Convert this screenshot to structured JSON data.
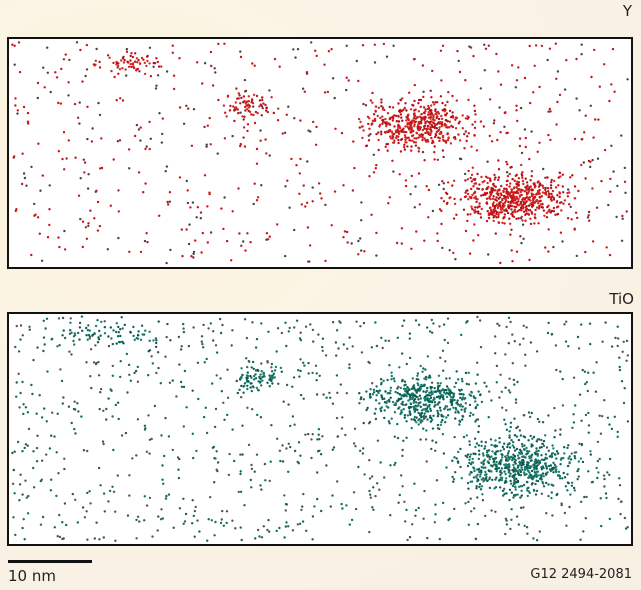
{
  "panels": [
    {
      "label": "Y"
    },
    {
      "label": "TiO"
    }
  ],
  "scale_bar": {
    "label": "10 nm"
  },
  "figure_id": "G12 2494-2081"
}
